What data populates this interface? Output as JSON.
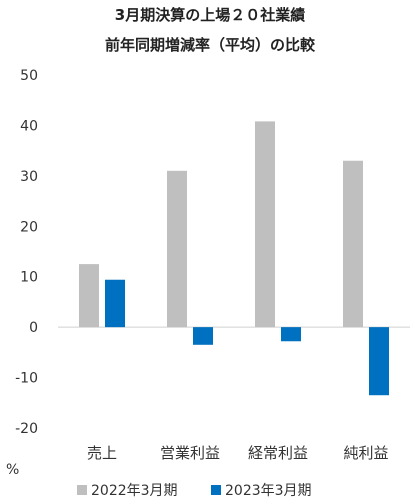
{
  "chart_data": {
    "type": "bar",
    "title": "3月期決算の上場２０社業績",
    "subtitle": "前年同期増減率（平均）の比較",
    "categories": [
      "売上",
      "営業利益",
      "経常利益",
      "純利益"
    ],
    "series": [
      {
        "name": "2022年3月期",
        "values": [
          12.5,
          31,
          40.8,
          33
        ],
        "color": "#bfbfbf"
      },
      {
        "name": "2023年3月期",
        "values": [
          9.4,
          -3.5,
          -2.8,
          -13.5
        ],
        "color": "#0070c0"
      }
    ],
    "ylabel": "%",
    "ylim": [
      -20,
      50
    ],
    "yticks": [
      "50",
      "40",
      "30",
      "20",
      "10",
      "0",
      "-10",
      "-20"
    ],
    "ytick_values": [
      50,
      40,
      30,
      20,
      10,
      0,
      -10,
      -20
    ],
    "legend": "bottom",
    "grid": false
  }
}
